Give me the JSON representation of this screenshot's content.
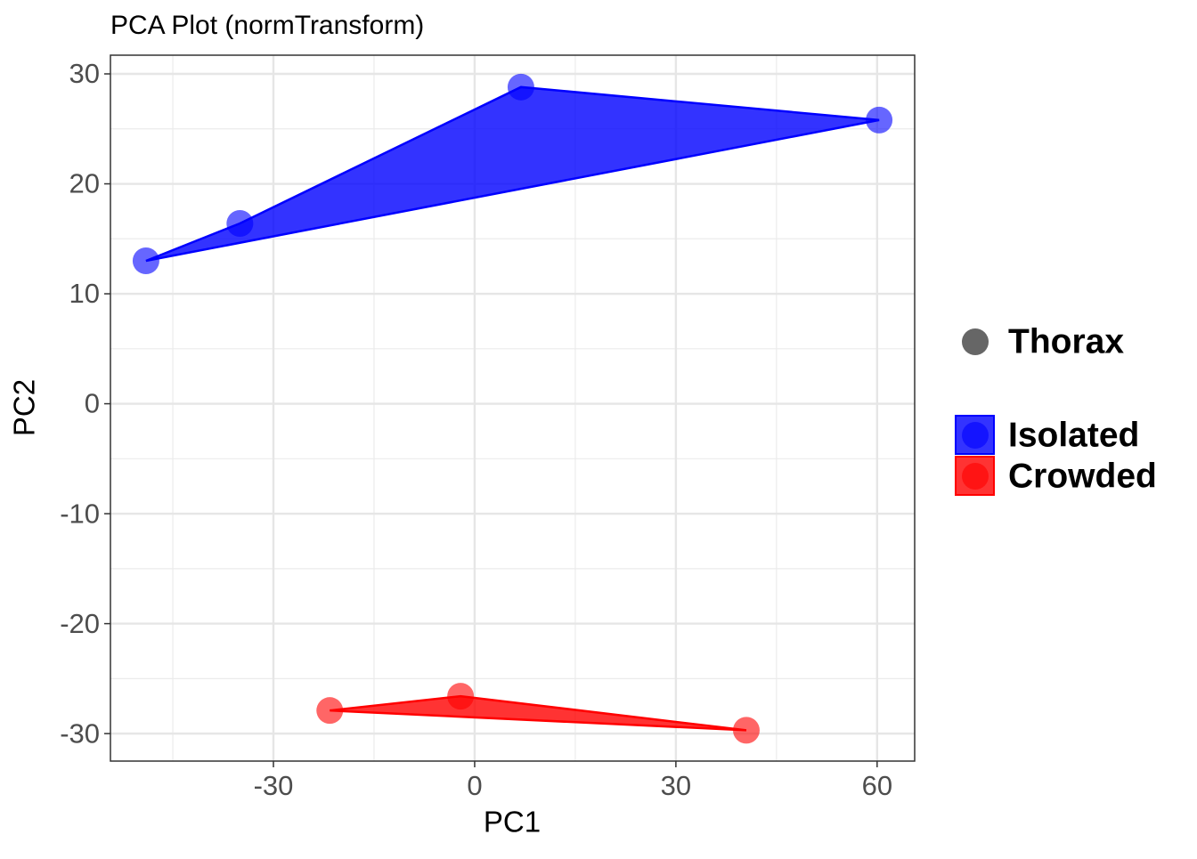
{
  "chart_data": {
    "type": "scatter",
    "title": "PCA Plot (normTransform)",
    "x_label": "PC1",
    "y_label": "PC2",
    "shape_legend": "Thorax",
    "series": [
      {
        "name": "Isolated",
        "color": "#0000ff",
        "x": [
          -49.0,
          -35.0,
          6.9,
          60.3
        ],
        "values": [
          13.0,
          16.4,
          28.8,
          25.8
        ]
      },
      {
        "name": "Crowded",
        "color": "#ff0000",
        "x": [
          -21.6,
          -2.1,
          40.5
        ],
        "values": [
          -27.9,
          -26.6,
          -29.7
        ]
      }
    ],
    "xlim": [
      -54.3,
      65.6
    ],
    "xticks": [
      -30,
      0,
      30,
      60
    ],
    "ylim": [
      -32.5,
      31.7
    ],
    "yticks": [
      -30,
      -20,
      -10,
      0,
      10,
      20,
      30
    ],
    "grid": true
  }
}
